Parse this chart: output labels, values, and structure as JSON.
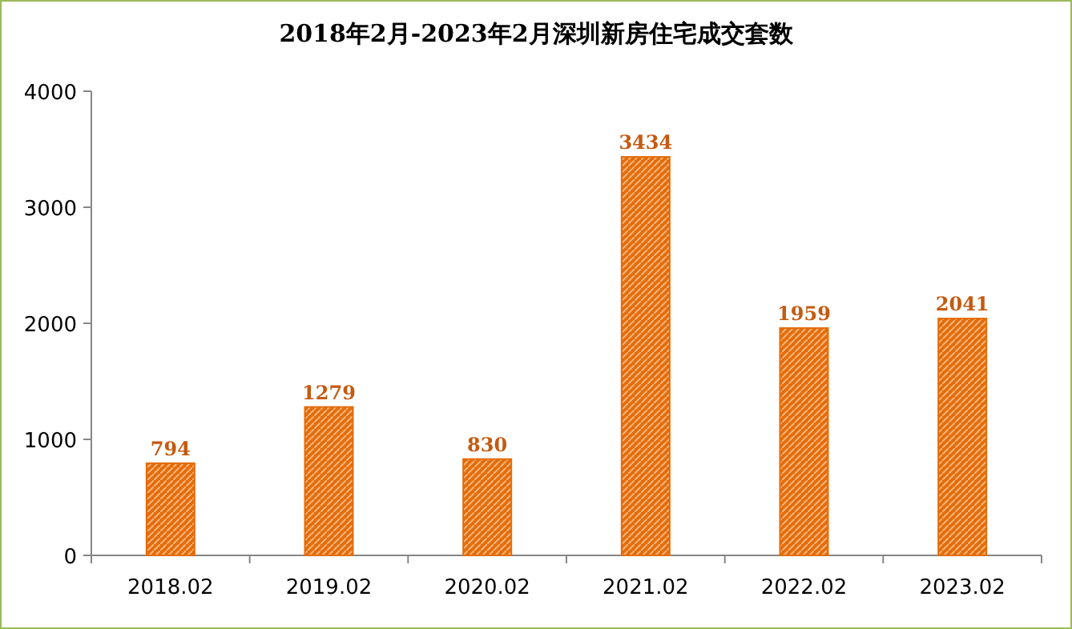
{
  "chart_data": {
    "type": "bar",
    "title": "2018年2月-2023年2月深圳新房住宅成交套数",
    "categories": [
      "2018.02",
      "2019.02",
      "2020.02",
      "2021.02",
      "2022.02",
      "2023.02"
    ],
    "values": [
      794,
      1279,
      830,
      3434,
      1959,
      2041
    ],
    "color": "#e46c0a",
    "ylim": [
      0,
      4000
    ],
    "yticks": [
      0,
      1000,
      2000,
      3000,
      4000
    ],
    "data_labels": true
  }
}
